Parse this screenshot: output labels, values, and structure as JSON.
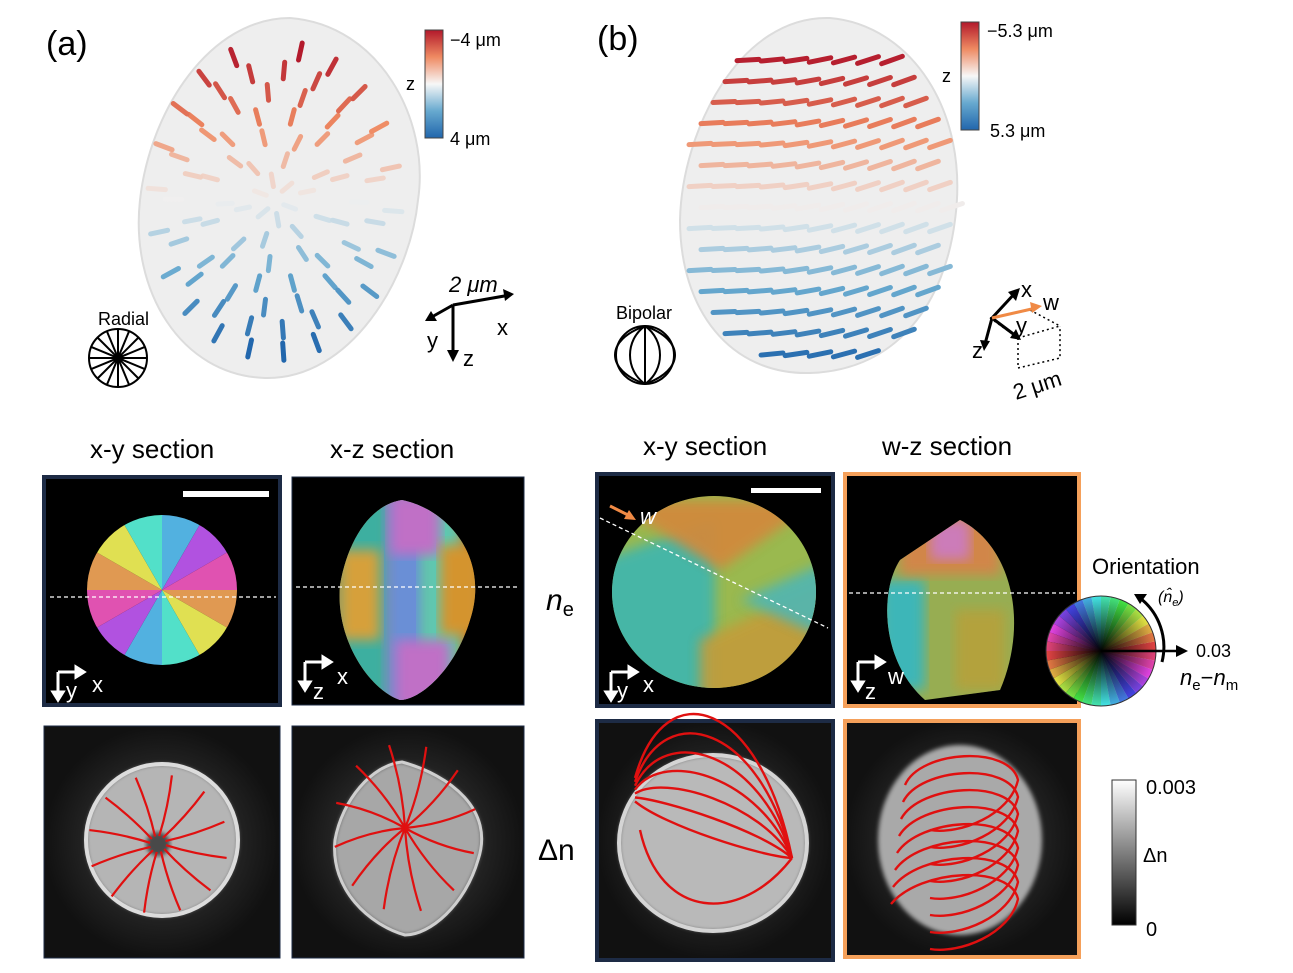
{
  "panels": {
    "a": {
      "label": "(a)",
      "colorbar": {
        "top": "−4 μm",
        "bottom": "4 μm",
        "axis": "z"
      },
      "scale": "2 μm",
      "axes": {
        "x": "x",
        "y": "y",
        "z": "z"
      },
      "config_name": "Radial"
    },
    "b": {
      "label": "(b)",
      "colorbar": {
        "top": "−5.3 μm",
        "bottom": "5.3 μm",
        "axis": "z"
      },
      "scale": "2 μm",
      "axes": {
        "x": "x",
        "y": "y",
        "z": "z",
        "w": "w"
      },
      "config_name": "Bipolar"
    }
  },
  "sections": {
    "a_xy": {
      "title": "x-y section",
      "h": "x",
      "v": "y"
    },
    "a_xz": {
      "title": "x-z section",
      "h": "x",
      "v": "z"
    },
    "b_xy": {
      "title": "x-y section",
      "h": "x",
      "v": "y",
      "w_marker": "w"
    },
    "b_wz": {
      "title": "w-z section",
      "h": "w",
      "v": "z"
    }
  },
  "row_labels": {
    "ne": "n",
    "ne_sub": "e",
    "dn": "Δn"
  },
  "orientation_wheel": {
    "title": "Orientation",
    "director": "(n̂",
    "director_sub": "e",
    "director_close": ")",
    "radius_value": "0.03",
    "axis_n1": "n",
    "axis_sub1": "e",
    "axis_minus": "−",
    "axis_n2": "n",
    "axis_sub2": "m"
  },
  "gray_colorbar": {
    "max": "0.003",
    "label": "Δn",
    "min": "0"
  },
  "colors": {
    "dark_frame": "#1d2b45",
    "orange_frame": "#f5a05a",
    "director_line": "#e01010",
    "w_arrow": "#f08a45"
  }
}
